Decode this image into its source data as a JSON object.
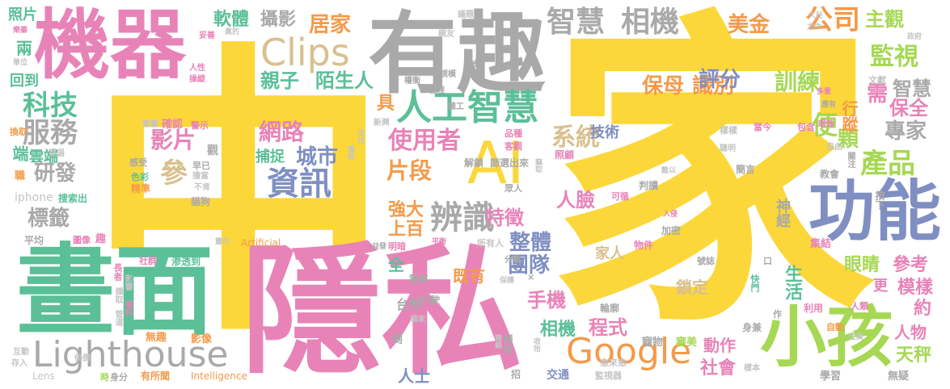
{
  "colors": {
    "yellow": "#fcd73a",
    "pink": "#e883b8",
    "green": "#5bbf98",
    "gray": "#a9a9a9",
    "lightgray": "#c4c4c4",
    "blue": "#7f8fc2",
    "orange": "#f49a4a",
    "lime": "#a6d854",
    "tan": "#d9c08f",
    "purple": "#8d9bd0"
  },
  "words": [
    {
      "text": "中",
      "color": "yellow"
    },
    {
      "text": "家",
      "color": "yellow"
    },
    {
      "text": "隱私",
      "color": "pink"
    },
    {
      "text": "畫面",
      "color": "green"
    },
    {
      "text": "有趣",
      "color": "gray"
    },
    {
      "text": "機器",
      "color": "pink"
    },
    {
      "text": "功能",
      "color": "blue"
    },
    {
      "text": "小孩",
      "color": "lime"
    },
    {
      "text": "Lighthouse",
      "color": "gray"
    },
    {
      "text": "AI",
      "color": "yellow"
    },
    {
      "text": "Google",
      "color": "orange"
    },
    {
      "text": "Clips",
      "color": "tan"
    },
    {
      "text": "人工智慧",
      "color": "green"
    },
    {
      "text": "辨識",
      "color": "gray"
    },
    {
      "text": "資訊",
      "color": "blue"
    },
    {
      "text": "智慧",
      "color": "gray"
    },
    {
      "text": "相機",
      "color": "gray"
    },
    {
      "text": "公司",
      "color": "orange"
    },
    {
      "text": "美金",
      "color": "orange"
    },
    {
      "text": "主觀",
      "color": "lime"
    },
    {
      "text": "監視",
      "color": "lime"
    },
    {
      "text": "居家",
      "color": "orange"
    },
    {
      "text": "攝影",
      "color": "gray"
    },
    {
      "text": "軟體",
      "color": "green"
    },
    {
      "text": "科技",
      "color": "green"
    },
    {
      "text": "服務",
      "color": "gray"
    },
    {
      "text": "研發",
      "color": "gray"
    },
    {
      "text": "標籤",
      "color": "gray"
    },
    {
      "text": "影片",
      "color": "pink"
    },
    {
      "text": "參",
      "color": "tan"
    },
    {
      "text": "網路",
      "color": "pink"
    },
    {
      "text": "城市",
      "color": "blue"
    },
    {
      "text": "親子",
      "color": "green"
    },
    {
      "text": "陌生人",
      "color": "green"
    },
    {
      "text": "使用者",
      "color": "pink"
    },
    {
      "text": "片段",
      "color": "orange"
    },
    {
      "text": "系統",
      "color": "tan"
    },
    {
      "text": "保母",
      "color": "orange"
    },
    {
      "text": "識別",
      "color": "orange"
    },
    {
      "text": "評分",
      "color": "blue"
    },
    {
      "text": "訓練",
      "color": "lime"
    },
    {
      "text": "智慧",
      "color": "gray"
    },
    {
      "text": "需",
      "color": "pink"
    },
    {
      "text": "保全",
      "color": "pink"
    },
    {
      "text": "便",
      "color": "lime"
    },
    {
      "text": "顆",
      "color": "lime"
    },
    {
      "text": "產品",
      "color": "lime"
    },
    {
      "text": "專家",
      "color": "gray"
    },
    {
      "text": "行蹤",
      "color": "orange"
    },
    {
      "text": "技術",
      "color": "blue"
    },
    {
      "text": "特徵",
      "color": "pink"
    },
    {
      "text": "人臉",
      "color": "pink"
    },
    {
      "text": "團隊",
      "color": "blue"
    },
    {
      "text": "整體",
      "color": "blue"
    },
    {
      "text": "強大",
      "color": "orange"
    },
    {
      "text": "上百",
      "color": "orange"
    },
    {
      "text": "手機",
      "color": "pink"
    },
    {
      "text": "程式",
      "color": "pink"
    },
    {
      "text": "相機",
      "color": "green"
    },
    {
      "text": "動作",
      "color": "pink"
    },
    {
      "text": "社會",
      "color": "pink"
    },
    {
      "text": "人士",
      "color": "blue"
    },
    {
      "text": "天秤",
      "color": "lime"
    },
    {
      "text": "人物",
      "color": "pink"
    },
    {
      "text": "眼睛",
      "color": "lime"
    },
    {
      "text": "參考",
      "color": "pink"
    },
    {
      "text": "模樣",
      "color": "pink"
    },
    {
      "text": "約",
      "color": "pink"
    },
    {
      "text": "生活",
      "color": "green"
    },
    {
      "text": "鎖定",
      "color": "tan"
    },
    {
      "text": "家人",
      "color": "tan"
    },
    {
      "text": "既有",
      "color": "orange"
    },
    {
      "text": "全",
      "color": "green"
    },
    {
      "text": "台幣",
      "color": "gray"
    },
    {
      "text": "雲端",
      "color": "green"
    },
    {
      "text": "端",
      "color": "green"
    },
    {
      "text": "iphone",
      "color": "lightgray"
    },
    {
      "text": "捕捉",
      "color": "green"
    },
    {
      "text": "神經",
      "color": "gray"
    },
    {
      "text": "具",
      "color": "orange"
    },
    {
      "text": "回到",
      "color": "green"
    },
    {
      "text": "兩",
      "color": "green"
    },
    {
      "text": "照片",
      "color": "green"
    },
    {
      "text": "更",
      "color": "pink"
    },
    {
      "text": "Artificial",
      "color": "orange"
    },
    {
      "text": "Intelligence",
      "color": "orange"
    },
    {
      "text": "Lens",
      "color": "lightgray"
    },
    {
      "text": "無趣",
      "color": "orange"
    },
    {
      "text": "影像",
      "color": "orange"
    },
    {
      "text": "有所聞",
      "color": "orange"
    },
    {
      "text": "學習",
      "color": "gray"
    },
    {
      "text": "無疑",
      "color": "gray"
    },
    {
      "text": "交通",
      "color": "blue"
    },
    {
      "text": "監視器",
      "color": "lightgray"
    },
    {
      "text": "身分",
      "color": "gray"
    },
    {
      "text": "時",
      "color": "lime"
    },
    {
      "text": "寵物",
      "color": "gray"
    },
    {
      "text": "審美",
      "color": "lime"
    },
    {
      "text": "輪廓",
      "color": "gray"
    },
    {
      "text": "愈來愈",
      "color": "lightgray"
    },
    {
      "text": "餵給",
      "color": "gray"
    },
    {
      "text": "倒",
      "color": "gray"
    },
    {
      "text": "行駛",
      "color": "gray"
    },
    {
      "text": "駕車",
      "color": "gray"
    },
    {
      "text": "所有人",
      "color": "lightgray"
    },
    {
      "text": "明暗",
      "color": "pink"
    },
    {
      "text": "平均",
      "color": "gray"
    },
    {
      "text": "圖像",
      "color": "pink"
    },
    {
      "text": "趣",
      "color": "pink"
    },
    {
      "text": "社群",
      "color": "pink"
    },
    {
      "text": "渗透到",
      "color": "green"
    },
    {
      "text": "長者",
      "color": "pink"
    },
    {
      "text": "影響",
      "color": "lightgray"
    },
    {
      "text": "擷取",
      "color": "lightgray"
    },
    {
      "text": "福利",
      "color": "pink"
    },
    {
      "text": "管道",
      "color": "lightgray"
    },
    {
      "text": "互動",
      "color": "lightgray"
    },
    {
      "text": "存入",
      "color": "lightgray"
    },
    {
      "text": "倘倒",
      "color": "lightgray"
    },
    {
      "text": "搜索出",
      "color": "green"
    },
    {
      "text": "精準",
      "color": "orange"
    },
    {
      "text": "貓狗",
      "color": "gray"
    },
    {
      "text": "色彩",
      "color": "green"
    },
    {
      "text": "感受",
      "color": "gray"
    },
    {
      "text": "早已",
      "color": "gray"
    },
    {
      "text": "擔當",
      "color": "lightgray"
    },
    {
      "text": "不肯",
      "color": "lightgray"
    },
    {
      "text": "確認",
      "color": "pink"
    },
    {
      "text": "警示",
      "color": "pink"
    },
    {
      "text": "緊繫",
      "color": "lightgray"
    },
    {
      "text": "提倡",
      "color": "lightgray"
    },
    {
      "text": "換取",
      "color": "orange"
    },
    {
      "text": "職",
      "color": "orange"
    },
    {
      "text": "觀",
      "color": "gray"
    },
    {
      "text": "交付",
      "color": "lightgray"
    },
    {
      "text": "蓬勃",
      "color": "lightgray"
    },
    {
      "text": "解鎖",
      "color": "gray"
    },
    {
      "text": "篩選出來",
      "color": "gray"
    },
    {
      "text": "品種",
      "color": "pink"
    },
    {
      "text": "客觀",
      "color": "pink"
    },
    {
      "text": "竊取",
      "color": "lightgray"
    },
    {
      "text": "照顧",
      "color": "pink"
    },
    {
      "text": "樣樣",
      "color": "lightgray"
    },
    {
      "text": "聰明",
      "color": "lightgray"
    },
    {
      "text": "當今",
      "color": "pink"
    },
    {
      "text": "包含",
      "color": "pink"
    },
    {
      "text": "眼珠",
      "color": "pink"
    },
    {
      "text": "自由",
      "color": "lightgray"
    },
    {
      "text": "關注",
      "color": "gray"
    },
    {
      "text": "教會",
      "color": "gray"
    },
    {
      "text": "簡言",
      "color": "gray"
    },
    {
      "text": "難以",
      "color": "lightgray"
    },
    {
      "text": "判讀",
      "color": "gray"
    },
    {
      "text": "可循",
      "color": "pink"
    },
    {
      "text": "眾人",
      "color": "gray"
    },
    {
      "text": "按下",
      "color": "gray"
    },
    {
      "text": "入侵",
      "color": "pink"
    },
    {
      "text": "加密",
      "color": "gray"
    },
    {
      "text": "物件",
      "color": "pink"
    },
    {
      "text": "集結",
      "color": "pink"
    },
    {
      "text": "號誌",
      "color": "gray"
    },
    {
      "text": "口",
      "color": "gray"
    },
    {
      "text": "快門",
      "color": "green"
    },
    {
      "text": "作",
      "color": "gray"
    },
    {
      "text": "利用",
      "color": "pink"
    },
    {
      "text": "人類",
      "color": "pink"
    },
    {
      "text": "身兼",
      "color": "gray"
    },
    {
      "text": "自動",
      "color": "orange"
    },
    {
      "text": "企業",
      "color": "lightgray"
    },
    {
      "text": "樣本",
      "color": "lightgray"
    },
    {
      "text": "議題",
      "color": "lightgray"
    },
    {
      "text": "親友",
      "color": "lightgray"
    },
    {
      "text": "號",
      "color": "gray"
    },
    {
      "text": "權衡",
      "color": "gray"
    },
    {
      "text": "規模",
      "color": "gray"
    },
    {
      "text": "管理",
      "color": "gray"
    },
    {
      "text": "難工",
      "color": "gray"
    },
    {
      "text": "新興",
      "color": "lightgray"
    },
    {
      "text": "人民",
      "color": "lightgray"
    },
    {
      "text": "之中",
      "color": "lightgray"
    },
    {
      "text": "政府",
      "color": "lightgray"
    },
    {
      "text": "文獻",
      "color": "lightgray"
    },
    {
      "text": "多重",
      "color": "pink"
    },
    {
      "text": "應有",
      "color": "gray"
    },
    {
      "text": "眞的",
      "color": "lightgray"
    },
    {
      "text": "妥善",
      "color": "pink"
    },
    {
      "text": "人性",
      "color": "pink"
    },
    {
      "text": "操縱",
      "color": "pink"
    },
    {
      "text": "單位",
      "color": "lightgray"
    },
    {
      "text": "樂蓁",
      "color": "pink"
    },
    {
      "text": "靈巧",
      "color": "lightgray"
    },
    {
      "text": "國家",
      "color": "lightgray"
    },
    {
      "text": "平衡",
      "color": "pink"
    },
    {
      "text": "益發",
      "color": "gray"
    },
    {
      "text": "分數",
      "color": "gray"
    },
    {
      "text": "收拾",
      "color": "lightgray"
    },
    {
      "text": "聯顧",
      "color": "lightgray"
    },
    {
      "text": "保護",
      "color": "lightgray"
    },
    {
      "text": "招",
      "color": "gray"
    },
    {
      "text": "×",
      "color": "gray"
    }
  ]
}
